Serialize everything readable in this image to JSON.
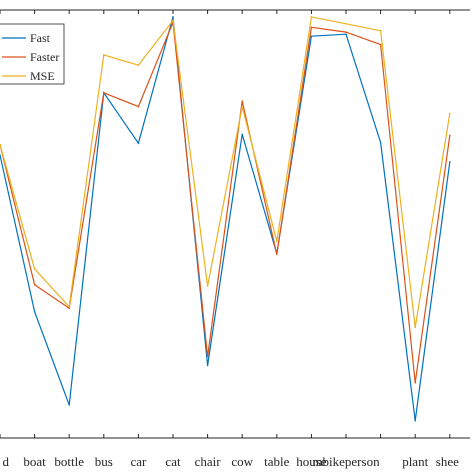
{
  "chart_data": {
    "type": "line",
    "categories": [
      "bird",
      "boat",
      "bottle",
      "bus",
      "car",
      "cat",
      "chair",
      "cow",
      "table",
      "house",
      "mbike",
      "person",
      "plant",
      "sheep"
    ],
    "visible_categories": [
      "d",
      "boat",
      "bottle",
      "bus",
      "car",
      "cat",
      "chair",
      "cow",
      "table",
      "house",
      "mbikeperson",
      "",
      "plant",
      "shee"
    ],
    "series": [
      {
        "name": "Fast",
        "color": "#0072BD",
        "values": [
          79.0,
          56.3,
          42.8,
          88.0,
          80.7,
          99.0,
          48.5,
          82.0,
          64.7,
          96.2,
          96.5,
          80.8,
          40.5,
          78.0
        ]
      },
      {
        "name": "Faster",
        "color": "#D95319",
        "values": [
          80.5,
          60.2,
          56.8,
          88.0,
          86.0,
          98.2,
          49.8,
          86.8,
          64.6,
          97.5,
          96.8,
          95.0,
          46.0,
          81.8
        ]
      },
      {
        "name": "MSE",
        "color": "#EDB120",
        "values": [
          80.5,
          62.5,
          57.0,
          93.5,
          92.0,
          98.5,
          60.0,
          86.0,
          66.5,
          99.0,
          98.0,
          97.0,
          54.0,
          85.0
        ]
      }
    ],
    "ylim": [
      38,
      100
    ],
    "legend_position": "top-left",
    "grid": false
  }
}
